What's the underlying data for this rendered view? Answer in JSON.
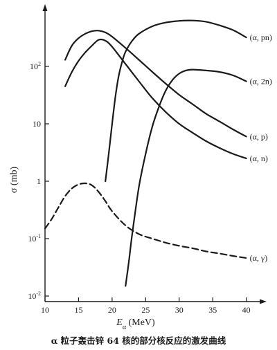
{
  "chart_data": {
    "type": "line",
    "caption": "α 粒子轰击锌 64 核的部分核反应的激发曲线",
    "ylabel": "σ (mb)",
    "xlabel_main": "E",
    "xlabel_sub": "α",
    "xlabel_unit": " (MeV)",
    "xscale": "linear",
    "yscale": "log",
    "xlim": [
      10,
      42
    ],
    "ylim": [
      0.01,
      1000
    ],
    "grid": false,
    "x_ticks": [
      10,
      15,
      20,
      25,
      30,
      35,
      40
    ],
    "x_tick_labels": [
      "10",
      "15",
      "20",
      "25",
      "30",
      "35",
      "40"
    ],
    "y_ticks": [
      0.01,
      0.1,
      1,
      10,
      100
    ],
    "y_tick_labels": [
      {
        "base": "10",
        "exp": "-2"
      },
      {
        "base": "10",
        "exp": "-1"
      },
      {
        "base": "1",
        "exp": ""
      },
      {
        "base": "10",
        "exp": ""
      },
      {
        "base": "10",
        "exp": "2"
      }
    ],
    "series": [
      {
        "name": "(α, pn)",
        "style": "solid",
        "x": [
          19.0,
          19.5,
          20.0,
          20.5,
          21.0,
          21.5,
          22.0,
          23.0,
          24.0,
          26.0,
          28.0,
          30.0,
          32.0,
          34.0,
          36.0,
          38.0,
          40.0
        ],
        "y": [
          1.0,
          3.0,
          10,
          30,
          70,
          120,
          180,
          280,
          370,
          500,
          580,
          620,
          630,
          600,
          520,
          430,
          320
        ]
      },
      {
        "name": "(α, 2n)",
        "style": "solid",
        "x": [
          22.0,
          22.5,
          23.0,
          24.0,
          25.0,
          26.0,
          27.0,
          28.0,
          29.0,
          30.0,
          31.0,
          32.0,
          34.0,
          36.0,
          38.0,
          40.0
        ],
        "y": [
          0.015,
          0.04,
          0.12,
          0.8,
          3.0,
          9.0,
          20,
          38,
          58,
          75,
          85,
          88,
          85,
          80,
          70,
          55
        ]
      },
      {
        "name": "(α, p)",
        "style": "solid",
        "x": [
          13.0,
          14.0,
          15.0,
          16.0,
          17.0,
          18.0,
          19.0,
          20.0,
          22.0,
          24.0,
          26.0,
          28.0,
          30.0,
          32.0,
          34.0,
          36.0,
          38.0,
          40.0
        ],
        "y": [
          130,
          230,
          310,
          370,
          410,
          420,
          390,
          330,
          210,
          130,
          80,
          50,
          32,
          22,
          15,
          11,
          8.0,
          6.0
        ]
      },
      {
        "name": "(α, n)",
        "style": "solid",
        "x": [
          13.0,
          14.0,
          15.0,
          16.0,
          17.0,
          18.0,
          19.0,
          20.0,
          22.0,
          24.0,
          26.0,
          28.0,
          30.0,
          32.0,
          34.0,
          36.0,
          38.0,
          40.0
        ],
        "y": [
          45,
          80,
          125,
          175,
          230,
          290,
          280,
          220,
          110,
          55,
          28,
          16,
          10,
          7.0,
          5.0,
          3.8,
          3.0,
          2.5
        ]
      },
      {
        "name": "(α, γ)",
        "style": "dashed",
        "x": [
          10.0,
          11.0,
          12.0,
          13.0,
          14.0,
          15.0,
          16.0,
          17.0,
          18.0,
          19.0,
          20.0,
          22.0,
          24.0,
          26.0,
          28.0,
          30.0,
          32.0,
          34.0,
          36.0,
          38.0,
          40.0
        ],
        "y": [
          0.15,
          0.22,
          0.35,
          0.55,
          0.75,
          0.88,
          0.92,
          0.85,
          0.65,
          0.45,
          0.3,
          0.17,
          0.12,
          0.1,
          0.085,
          0.075,
          0.068,
          0.06,
          0.055,
          0.05,
          0.046
        ]
      }
    ]
  }
}
